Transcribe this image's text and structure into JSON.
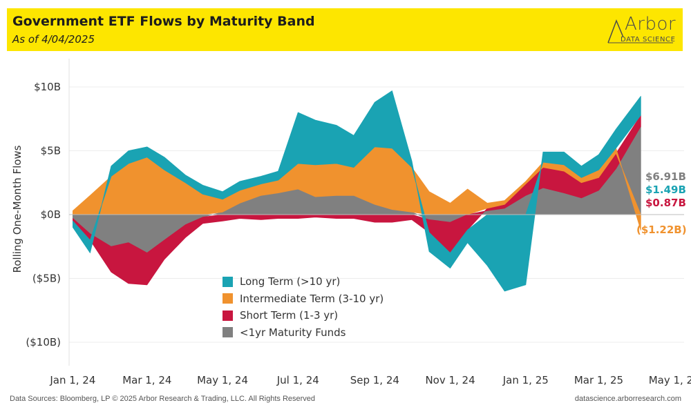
{
  "header": {
    "title": "Government ETF Flows by Maturity Band",
    "subtitle": "As of 4/04/2025",
    "logo_word": "Arbor",
    "logo_sub": "DATA SCIENCE"
  },
  "footer": {
    "left": "Data Sources: Bloomberg, LP © 2025 Arbor Research & Trading, LLC. All Rights Reserved",
    "right": "datascience.arborresearch.com"
  },
  "colors": {
    "long": "#1aa3b3",
    "intermediate": "#f0922e",
    "short": "#c8163f",
    "ultrashort": "#808080",
    "banner": "#fde600"
  },
  "end_labels": {
    "ultrashort": "$6.91B",
    "long": "$1.49B",
    "short": "$0.87B",
    "intermediate": "($1.22B)"
  },
  "chart_data": {
    "type": "area",
    "title": "Government ETF Flows by Maturity Band",
    "subtitle": "As of 4/04/2025",
    "xlabel": "",
    "ylabel": "Rolling One-Month Flows",
    "unit": "USD billions",
    "ylim": [
      -12,
      12
    ],
    "yticks": [
      10,
      5,
      0,
      -5,
      -10
    ],
    "ytick_labels": [
      "$10B",
      "$5B",
      "$0B",
      "($5B)",
      "($10B)"
    ],
    "xticks": [
      "2024-01-01",
      "2024-03-01",
      "2024-05-01",
      "2024-07-01",
      "2024-09-01",
      "2024-11-01",
      "2025-01-01",
      "2025-03-01",
      "2025-05-01"
    ],
    "xtick_labels": [
      "Jan 1, 24",
      "Mar 1, 24",
      "May 1, 24",
      "Jul 1, 24",
      "Sep 1, 24",
      "Nov 1, 24",
      "Jan 1, 25",
      "Mar 1, 25",
      "May 1, 25"
    ],
    "xlim": [
      "2023-12-29",
      "2025-05-09"
    ],
    "stacked": true,
    "legend_position": "bottom-center inside plot",
    "grid": "horizontal",
    "x": [
      "2024-01-01",
      "2024-01-15",
      "2024-02-01",
      "2024-02-15",
      "2024-03-01",
      "2024-03-15",
      "2024-04-01",
      "2024-04-15",
      "2024-05-01",
      "2024-05-15",
      "2024-06-01",
      "2024-06-15",
      "2024-07-01",
      "2024-07-15",
      "2024-08-01",
      "2024-08-15",
      "2024-09-01",
      "2024-09-15",
      "2024-10-01",
      "2024-10-15",
      "2024-11-01",
      "2024-11-15",
      "2024-12-01",
      "2024-12-15",
      "2025-01-01",
      "2025-01-15",
      "2025-02-01",
      "2025-02-15",
      "2025-03-01",
      "2025-03-15",
      "2025-04-04"
    ],
    "series": [
      {
        "name": "<1yr Maturity Funds",
        "key": "ultrashort",
        "values": [
          -0.3,
          -1.5,
          -2.5,
          -2.2,
          -3.0,
          -2.0,
          -0.8,
          -0.2,
          0.2,
          0.9,
          1.5,
          1.7,
          2.0,
          1.4,
          1.5,
          1.5,
          0.8,
          0.4,
          0.2,
          -0.4,
          -0.6,
          0.0,
          0.3,
          0.5,
          1.5,
          2.1,
          1.7,
          1.3,
          1.9,
          3.6,
          6.91
        ]
      },
      {
        "name": "Short Term (1-3 yr)",
        "key": "short",
        "values": [
          -0.2,
          -0.5,
          -2.0,
          -3.2,
          -2.5,
          -1.5,
          -1.0,
          -0.5,
          -0.5,
          -0.3,
          -0.4,
          -0.3,
          -0.3,
          -0.2,
          -0.3,
          -0.3,
          -0.6,
          -0.6,
          -0.4,
          -1.0,
          -2.4,
          -1.2,
          0.2,
          0.3,
          0.9,
          1.6,
          1.7,
          1.2,
          1.0,
          1.2,
          0.87
        ]
      },
      {
        "name": "Intermediate Term (3-10 yr)",
        "key": "intermediate",
        "values": [
          0.3,
          1.5,
          3.0,
          4.0,
          4.5,
          3.5,
          2.5,
          1.6,
          1.0,
          1.0,
          0.9,
          1.0,
          2.0,
          2.5,
          2.5,
          2.2,
          4.5,
          4.8,
          3.5,
          1.8,
          0.9,
          2.0,
          0.4,
          0.3,
          0.2,
          0.4,
          0.5,
          0.4,
          0.6,
          0.4,
          -1.22
        ]
      },
      {
        "name": "Long Term (>10 yr)",
        "key": "long",
        "values": [
          -0.5,
          -1.0,
          0.8,
          1.0,
          0.8,
          1.0,
          0.6,
          0.7,
          0.6,
          0.7,
          0.6,
          0.7,
          4.0,
          3.5,
          3.0,
          2.5,
          3.5,
          4.5,
          0.5,
          -1.5,
          -1.2,
          -1.0,
          -4.0,
          -6.0,
          -5.5,
          0.8,
          1.0,
          0.9,
          1.2,
          1.5,
          1.49
        ]
      }
    ]
  },
  "legend": [
    {
      "key": "long",
      "label": "Long Term (>10 yr)"
    },
    {
      "key": "intermediate",
      "label": "Intermediate Term (3-10 yr)"
    },
    {
      "key": "short",
      "label": "Short Term (1-3 yr)"
    },
    {
      "key": "ultrashort",
      "label": "<1yr Maturity Funds"
    }
  ]
}
